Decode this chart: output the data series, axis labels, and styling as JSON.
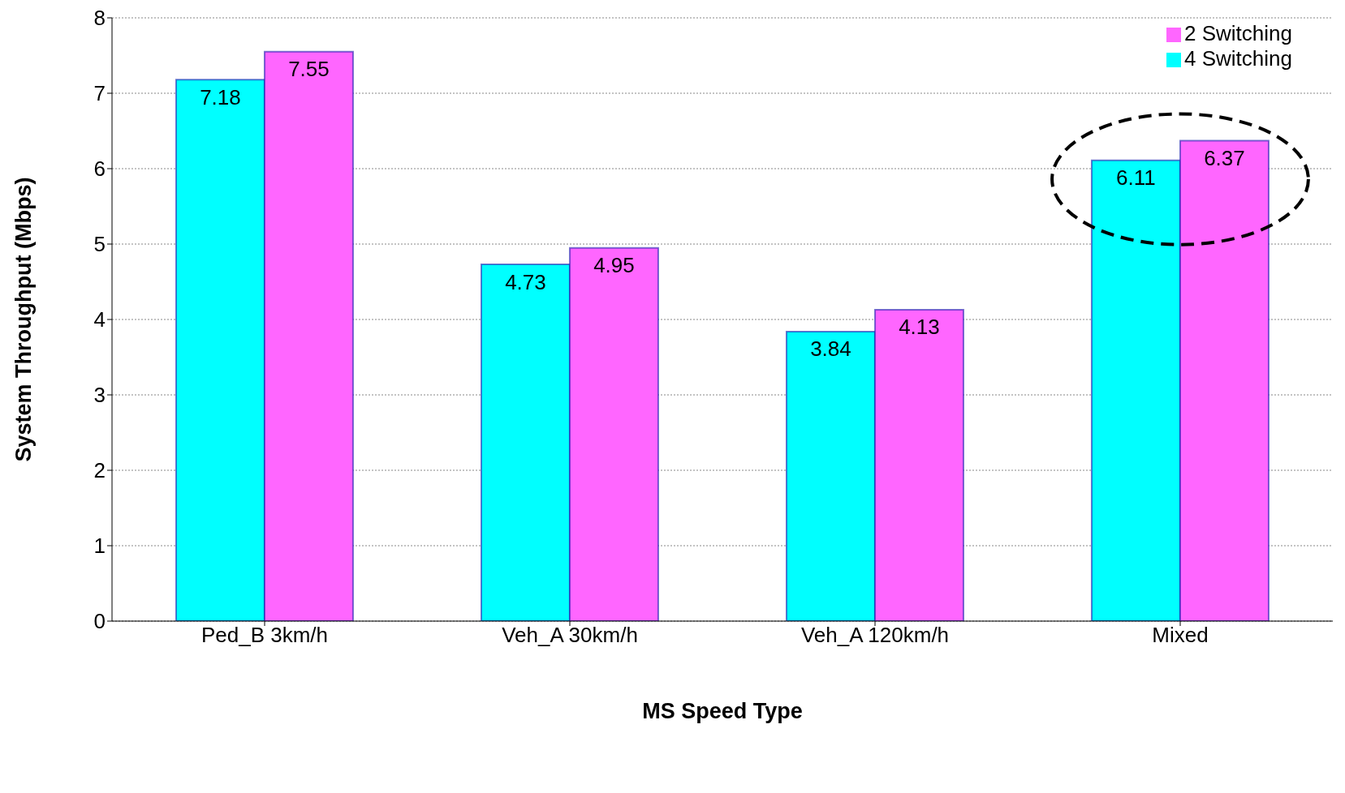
{
  "chart_data": {
    "type": "bar",
    "xlabel": "MS Speed Type",
    "ylabel": "System Throughput (Mbps)",
    "categories": [
      "Ped_B 3km/h",
      "Veh_A 30km/h",
      "Veh_A 120km/h",
      "Mixed"
    ],
    "series": [
      {
        "name": "4 Switching",
        "color": "#00ffff",
        "values": [
          7.18,
          4.73,
          3.84,
          6.11
        ]
      },
      {
        "name": "2 Switching",
        "color": "#ff66ff",
        "values": [
          7.55,
          4.95,
          4.13,
          6.37
        ]
      }
    ],
    "ylim": [
      0,
      8
    ],
    "yticks": [
      0,
      1,
      2,
      3,
      4,
      5,
      6,
      7,
      8
    ],
    "grid": "y",
    "legend": "top right",
    "data_labels": true
  }
}
